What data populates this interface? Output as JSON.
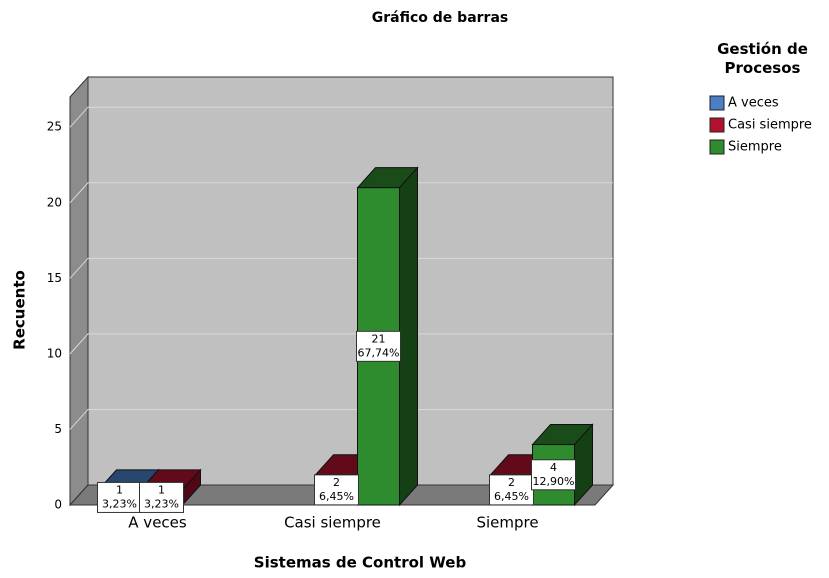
{
  "chart_data": {
    "type": "bar3d",
    "title": "Gráfico de barras",
    "x_label": "Sistemas de Control Web",
    "y_label": "Recuento",
    "legend_title": "Gestión de Procesos",
    "categories": [
      "A veces",
      "Casi siempre",
      "Siempre"
    ],
    "series": [
      {
        "name": "A veces",
        "color": "#4a7fc8",
        "values": [
          1,
          null,
          null
        ],
        "percents": [
          3.23,
          null,
          null
        ],
        "percent_labels": [
          "3,23%",
          null,
          null
        ]
      },
      {
        "name": "Casi siempre",
        "color": "#b3122f",
        "values": [
          1,
          2,
          2
        ],
        "percents": [
          3.23,
          6.45,
          6.45
        ],
        "percent_labels": [
          "3,23%",
          "6,45%",
          "6,45%"
        ]
      },
      {
        "name": "Siempre",
        "color": "#2e8b2e",
        "values": [
          null,
          21,
          4
        ],
        "percents": [
          null,
          67.74,
          12.9
        ],
        "percent_labels": [
          null,
          "67,74%",
          "12,90%"
        ]
      }
    ],
    "ylim": [
      0,
      27
    ],
    "yticks": [
      0,
      5,
      10,
      15,
      20,
      25
    ],
    "grid": true
  }
}
